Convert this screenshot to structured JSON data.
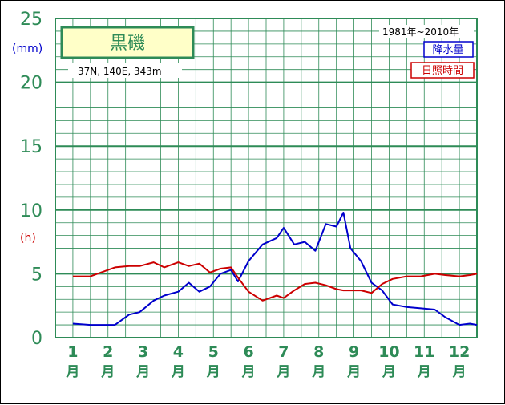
{
  "chart_data": {
    "type": "line",
    "station": "黒磯",
    "location": "37N, 140E, 343m",
    "period": "1981年~2010年",
    "y_unit_precip": "(mm)",
    "y_unit_sun": "(h)",
    "ylim": [
      0,
      25
    ],
    "y_ticks": [
      "0",
      "5",
      "10",
      "15",
      "20",
      "25"
    ],
    "x_months": [
      "1",
      "2",
      "3",
      "4",
      "5",
      "6",
      "7",
      "8",
      "9",
      "10",
      "11",
      "12"
    ],
    "x_month_suffix": "月",
    "grid": true,
    "legend_placement": "top-right",
    "x": [
      1.0,
      1.5,
      1.9,
      2.2,
      2.6,
      2.9,
      3.3,
      3.6,
      4.0,
      4.3,
      4.6,
      4.9,
      5.2,
      5.5,
      5.7,
      6.0,
      6.4,
      6.8,
      7.0,
      7.3,
      7.6,
      7.9,
      8.2,
      8.5,
      8.7,
      8.9,
      9.2,
      9.5,
      9.8,
      10.1,
      10.5,
      10.9,
      11.3,
      11.6,
      12.0,
      12.3,
      12.5
    ],
    "series": [
      {
        "name": "降水量",
        "color": "#0000cc",
        "values": [
          1.1,
          1.0,
          1.0,
          1.0,
          1.8,
          2.0,
          2.9,
          3.3,
          3.6,
          4.3,
          3.6,
          4.0,
          5.0,
          5.3,
          4.4,
          6.0,
          7.3,
          7.8,
          8.6,
          7.3,
          7.5,
          6.8,
          8.9,
          8.7,
          9.8,
          7.0,
          6.0,
          4.3,
          3.7,
          2.6,
          2.4,
          2.3,
          2.2,
          1.6,
          1.0,
          1.1,
          1.0
        ]
      },
      {
        "name": "日照時間",
        "color": "#cc0000",
        "values": [
          4.8,
          4.8,
          5.2,
          5.5,
          5.6,
          5.6,
          5.9,
          5.5,
          5.9,
          5.6,
          5.8,
          5.1,
          5.4,
          5.5,
          4.7,
          3.6,
          2.9,
          3.3,
          3.1,
          3.7,
          4.2,
          4.3,
          4.1,
          3.8,
          3.7,
          3.7,
          3.7,
          3.5,
          4.2,
          4.6,
          4.8,
          4.8,
          5.0,
          4.9,
          4.8,
          4.9,
          5.0
        ]
      }
    ]
  }
}
